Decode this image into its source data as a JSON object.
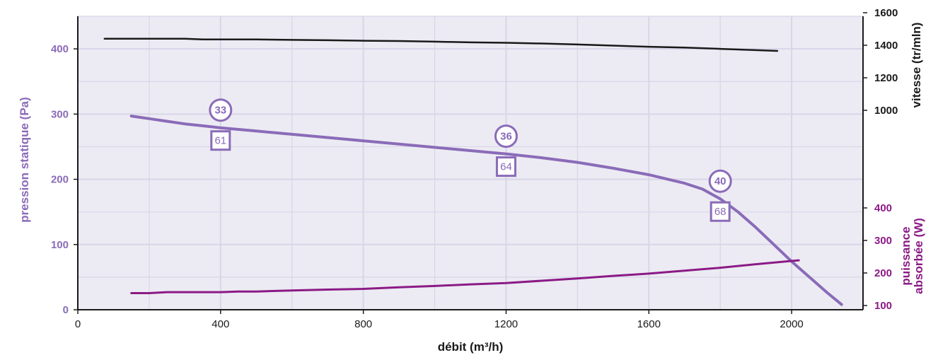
{
  "chart_data": {
    "type": "line",
    "xlabel": "débit (m³/h)",
    "xlim": [
      0,
      2200
    ],
    "x_ticks": [
      "0",
      "400",
      "800",
      "1200",
      "1600",
      "2000"
    ],
    "x_tick_values": [
      0,
      400,
      800,
      1200,
      1600,
      2000
    ],
    "left_axis": {
      "label": "pression statique (Pa)",
      "ylim": [
        0,
        450
      ],
      "ticks": [
        "0",
        "100",
        "200",
        "300",
        "400"
      ],
      "tick_values": [
        0,
        100,
        200,
        300,
        400
      ]
    },
    "right_axis_speed": {
      "label": "vitesse (tr/mln)",
      "range": [
        1000,
        1600
      ],
      "ticks": [
        "1000",
        "1200",
        "1400",
        "1600"
      ],
      "tick_values": [
        1000,
        1200,
        1400,
        1600
      ]
    },
    "right_axis_power": {
      "label_line1": "puissance",
      "label_line2": "absorbée (W)",
      "range": [
        100,
        400
      ],
      "ticks": [
        "100",
        "200",
        "300",
        "400"
      ],
      "tick_values": [
        100,
        200,
        300,
        400
      ]
    },
    "series": [
      {
        "axis": "left",
        "color": "#8a6bb8",
        "points": [
          [
            150,
            297
          ],
          [
            200,
            293
          ],
          [
            250,
            289
          ],
          [
            300,
            285
          ],
          [
            350,
            282
          ],
          [
            400,
            279
          ],
          [
            500,
            274
          ],
          [
            600,
            269
          ],
          [
            700,
            264
          ],
          [
            800,
            259
          ],
          [
            900,
            254
          ],
          [
            1000,
            249
          ],
          [
            1100,
            244
          ],
          [
            1200,
            239
          ],
          [
            1300,
            233
          ],
          [
            1400,
            226
          ],
          [
            1500,
            217
          ],
          [
            1600,
            207
          ],
          [
            1700,
            194
          ],
          [
            1750,
            185
          ],
          [
            1800,
            170
          ],
          [
            1850,
            150
          ],
          [
            1900,
            126
          ],
          [
            1950,
            100
          ],
          [
            2000,
            74
          ],
          [
            2050,
            50
          ],
          [
            2100,
            26
          ],
          [
            2140,
            8
          ]
        ]
      },
      {
        "axis": "right_speed",
        "color": "#1a1a1a",
        "points": [
          [
            75,
            1440
          ],
          [
            300,
            1440
          ],
          [
            350,
            1436
          ],
          [
            500,
            1436
          ],
          [
            600,
            1433
          ],
          [
            700,
            1431
          ],
          [
            800,
            1428
          ],
          [
            900,
            1426
          ],
          [
            1000,
            1422
          ],
          [
            1100,
            1418
          ],
          [
            1200,
            1415
          ],
          [
            1300,
            1411
          ],
          [
            1400,
            1405
          ],
          [
            1500,
            1398
          ],
          [
            1600,
            1391
          ],
          [
            1700,
            1386
          ],
          [
            1800,
            1378
          ],
          [
            1900,
            1370
          ],
          [
            1960,
            1365
          ]
        ]
      },
      {
        "axis": "right_power",
        "color": "#8b1a86",
        "points": [
          [
            150,
            138
          ],
          [
            200,
            138
          ],
          [
            250,
            141
          ],
          [
            300,
            141
          ],
          [
            350,
            141
          ],
          [
            400,
            141
          ],
          [
            450,
            143
          ],
          [
            500,
            143
          ],
          [
            600,
            146
          ],
          [
            700,
            149
          ],
          [
            800,
            151
          ],
          [
            900,
            156
          ],
          [
            1000,
            160
          ],
          [
            1100,
            165
          ],
          [
            1200,
            169
          ],
          [
            1300,
            176
          ],
          [
            1400,
            183
          ],
          [
            1500,
            191
          ],
          [
            1600,
            198
          ],
          [
            1700,
            207
          ],
          [
            1800,
            216
          ],
          [
            1900,
            227
          ],
          [
            2000,
            237
          ],
          [
            2020,
            239
          ]
        ]
      }
    ],
    "annotations": [
      {
        "x": 400,
        "circle": "33",
        "box": "61"
      },
      {
        "x": 1200,
        "circle": "36",
        "box": "64"
      },
      {
        "x": 1800,
        "circle": "40",
        "box": "68"
      }
    ]
  },
  "colors": {
    "plot_bg": "#ecebf3",
    "grid": "#d8d5e8",
    "pressure": "#8a6bb8",
    "speed": "#1a1a1a",
    "power": "#8b1a86",
    "axis": "#1a1a1a"
  }
}
